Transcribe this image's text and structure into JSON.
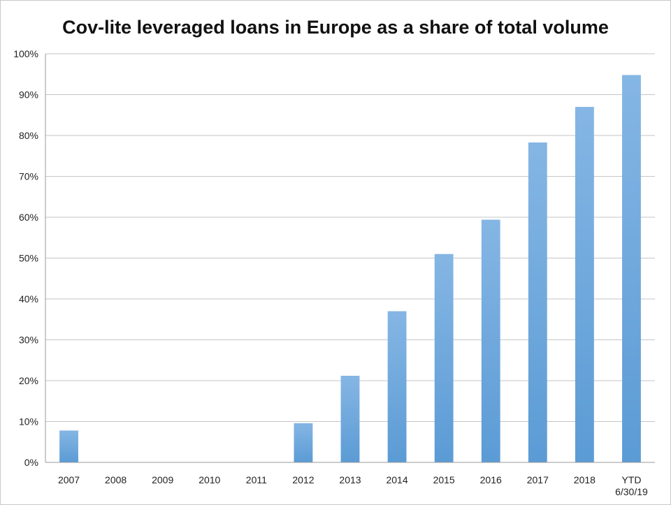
{
  "chart_data": {
    "type": "bar",
    "title": "Cov-lite leveraged loans in Europe as a share of total volume",
    "xlabel": "",
    "ylabel": "",
    "categories": [
      "2007",
      "2008",
      "2009",
      "2010",
      "2011",
      "2012",
      "2013",
      "2014",
      "2015",
      "2016",
      "2017",
      "2018",
      "YTD\n6/30/19"
    ],
    "values": [
      7.8,
      0,
      0,
      0,
      0,
      9.6,
      21.2,
      37.0,
      51.0,
      59.4,
      78.3,
      87.0,
      94.8
    ],
    "ylim": [
      0,
      100
    ],
    "yticks": [
      0,
      10,
      20,
      30,
      40,
      50,
      60,
      70,
      80,
      90,
      100
    ],
    "ytick_labels": [
      "0%",
      "10%",
      "20%",
      "30%",
      "40%",
      "50%",
      "60%",
      "70%",
      "80%",
      "90%",
      "100%"
    ],
    "grid": true,
    "legend": "none",
    "bar_color": "#5b9bd5",
    "bar_color_light": "#85b6e4"
  }
}
